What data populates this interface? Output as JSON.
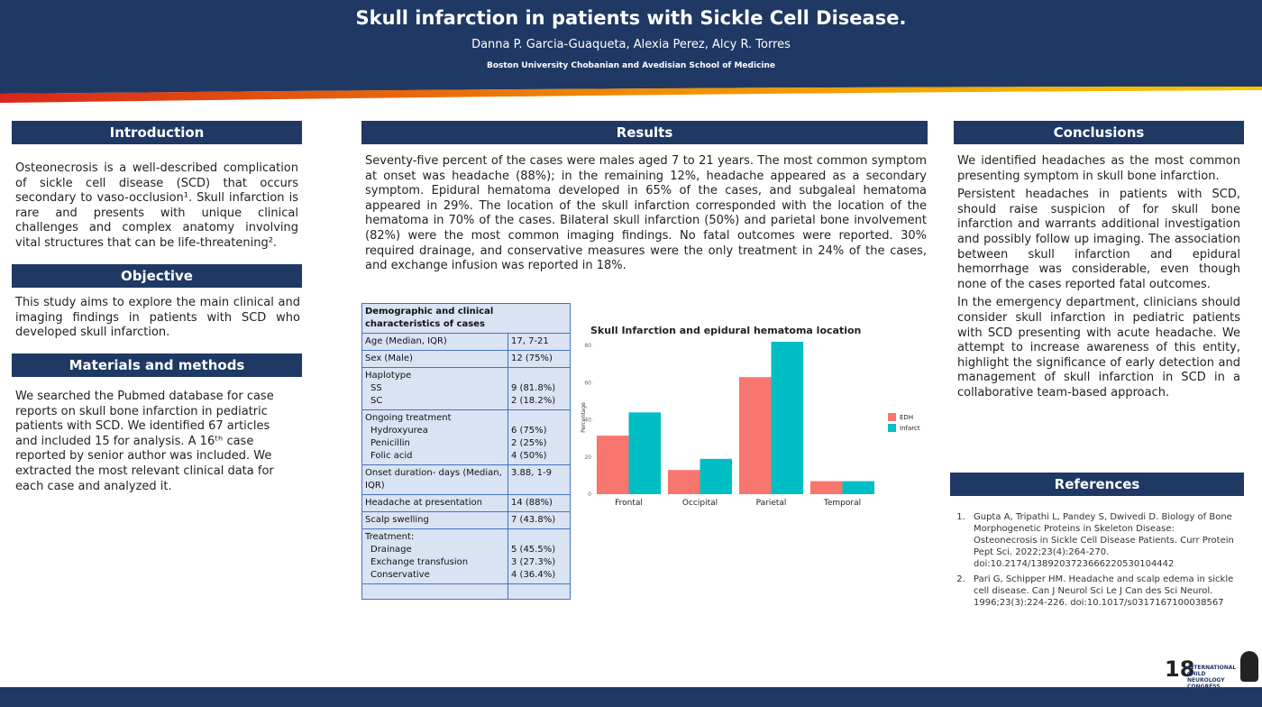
{
  "header": {
    "title": "Skull infarction in patients with Sickle Cell Disease.",
    "authors": "Danna P. Garcia-Guaqueta, Alexia Perez, Alcy R. Torres",
    "affiliation": "Boston University Chobanian and Avedisian School of Medicine"
  },
  "introduction": {
    "heading": "Introduction",
    "text": "Osteonecrosis is a well-described complication of sickle cell disease (SCD) that occurs secondary to vaso-occlusion¹. Skull infarction is rare and presents with unique clinical challenges and complex anatomy involving vital structures that can be life-threatening²."
  },
  "objective": {
    "heading": "Objective",
    "text": "This study aims to explore the main clinical and imaging findings in patients with SCD who developed skull infarction."
  },
  "methods": {
    "heading": "Materials and methods",
    "text": "We searched the Pubmed database for case reports on skull bone infarction in pediatric patients with SCD. We identified 67 articles and included 15 for analysis. A 16ᵗʰ case reported by senior author was included. We extracted the most relevant clinical data for each case and analyzed it."
  },
  "results": {
    "heading": "Results",
    "text": "Seventy-five percent of the cases were males aged 7 to 21 years. The most common symptom at onset was headache (88%); in the remaining 12%, headache appeared as a secondary symptom. Epidural hematoma developed in 65% of the cases, and subgaleal hematoma appeared in 29%. The location of the skull infarction corresponded with the location of the hematoma in 70% of the cases. Bilateral skull infarction (50%) and parietal bone involvement (82%) were the most common imaging findings. No fatal outcomes were reported. 30% required drainage, and conservative measures were the only treatment in 24% of the cases, and exchange infusion was reported in 18%."
  },
  "table": {
    "title": "Demographic and clinical characteristics of cases",
    "rows": [
      {
        "label": "Age (Median, IQR)",
        "value": "17, 7-21"
      },
      {
        "label": "Sex (Male)",
        "value": "12 (75%)"
      },
      {
        "label": "Haplotype",
        "items": [
          [
            "SS",
            "9 (81.8%)"
          ],
          [
            "SC",
            "2 (18.2%)"
          ]
        ]
      },
      {
        "label": "Ongoing treatment",
        "items": [
          [
            "Hydroxyurea",
            "6 (75%)"
          ],
          [
            "Penicillin",
            "2 (25%)"
          ],
          [
            "Folic acid",
            "4 (50%)"
          ]
        ]
      },
      {
        "label": "Onset duration- days (Median, IQR)",
        "value": "3.88, 1-9"
      },
      {
        "label": "Headache at presentation",
        "value": "14 (88%)"
      },
      {
        "label": "Scalp swelling",
        "value": "7 (43.8%)"
      },
      {
        "label": "Treatment:",
        "items": [
          [
            "Drainage",
            "5 (45.5%)"
          ],
          [
            "Exchange transfusion",
            "3 (27.3%)"
          ],
          [
            "Conservative",
            "4 (36.4%)"
          ]
        ]
      }
    ]
  },
  "chart_data": {
    "type": "bar",
    "title": "Skull Infarction and epidural hematoma location",
    "ylabel": "Percentage",
    "categories": [
      "Frontal",
      "Occipital",
      "Parietal",
      "Temporal"
    ],
    "series": [
      {
        "name": "EDH",
        "color": "#f8766d",
        "values": [
          31.5,
          13,
          63,
          7
        ]
      },
      {
        "name": "Infarct",
        "color": "#00bfc4",
        "values": [
          44,
          19,
          82,
          7
        ]
      }
    ],
    "ylim": [
      0,
      82.5
    ],
    "yticks": [
      0,
      20,
      40,
      60,
      80
    ],
    "grid": false,
    "legend": "right"
  },
  "conclusions": {
    "heading": "Conclusions",
    "paragraphs": [
      "We identified headaches as the most common presenting symptom in skull bone infarction.",
      "Persistent headaches in patients with SCD, should raise suspicion of for skull bone infarction and warrants additional investigation and possibly follow up imaging. The association between skull infarction and epidural hemorrhage was considerable, even though none of the cases reported fatal outcomes.",
      "In the emergency department, clinicians should consider skull infarction in pediatric patients with SCD presenting with acute headache. We attempt to increase awareness of this entity, highlight the significance of early detection and management of skull infarction in SCD in a collaborative team-based approach."
    ]
  },
  "references": {
    "heading": "References",
    "items": [
      "Gupta A, Tripathi L, Pandey S, Dwivedi D. Biology of Bone Morphogenetic Proteins in Skeleton Disease: Osteonecrosis in Sickle Cell Disease Patients. Curr Protein Pept Sci. 2022;23(4):264-270. doi:10.2174/1389203723666220530104442",
      "Pari G, Schipper HM. Headache and scalp edema in sickle cell disease. Can J Neurol Sci Le J Can des Sci Neurol. 1996;23(3):224-226. doi:10.1017/s0317167100038567"
    ]
  },
  "logo": {
    "number": "18",
    "text": "INTERNATIONAL CHILD NEUROLOGY CONGRESS"
  }
}
